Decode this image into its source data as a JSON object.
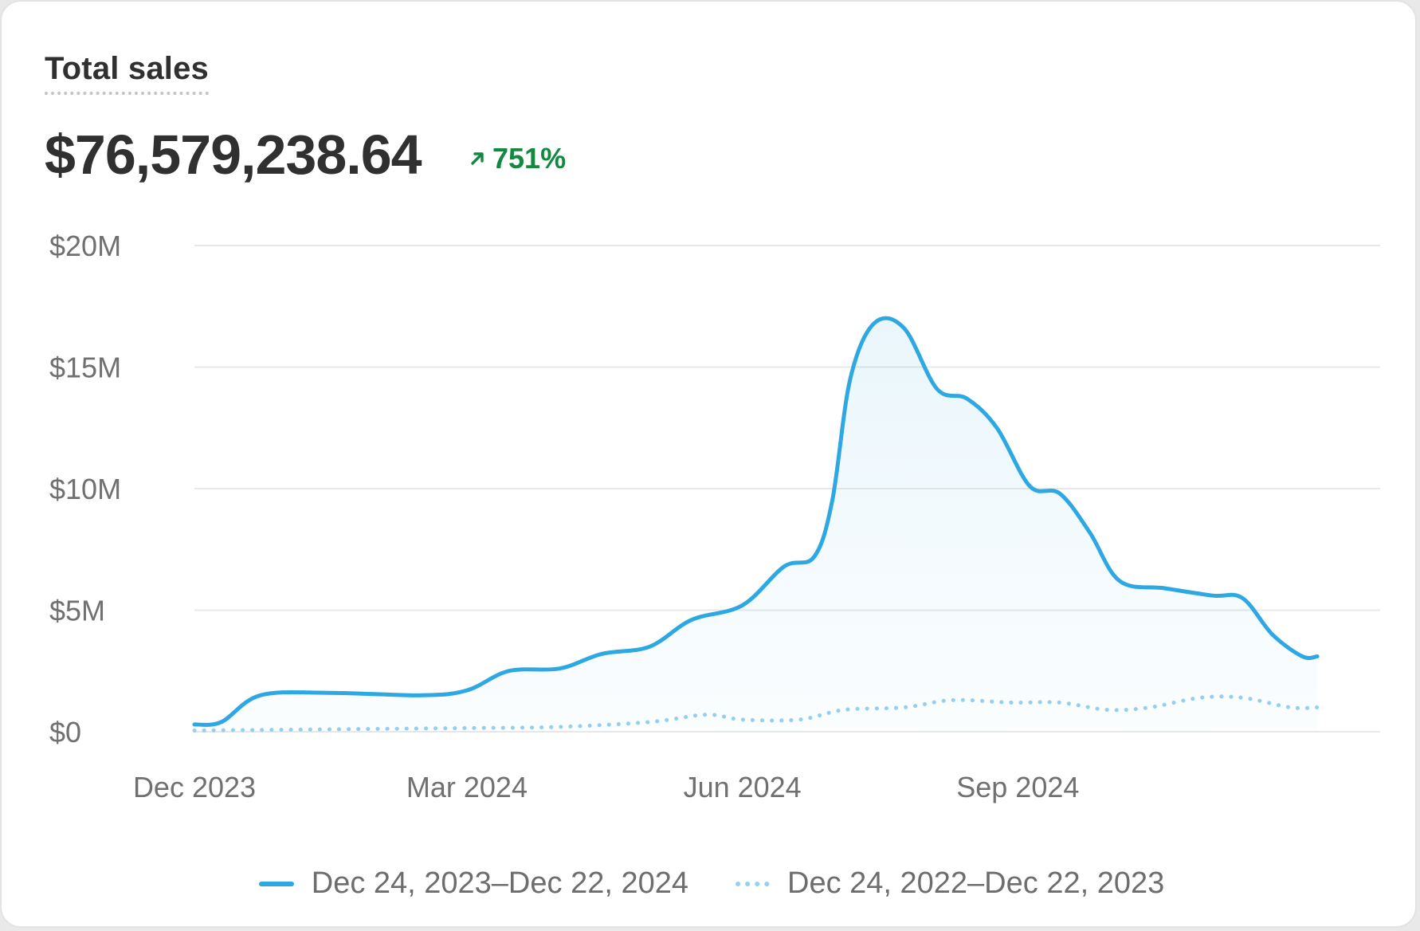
{
  "card": {
    "title": "Total sales",
    "total_value": "$76,579,238.64",
    "change": {
      "value": "751%",
      "direction": "up",
      "icon": "arrow-up-right-icon"
    }
  },
  "colors": {
    "current": "#2ea8e2",
    "previous": "#96d0ee",
    "positive": "#118a3f",
    "grid": "#e8e8e8",
    "axis_text": "#707070"
  },
  "chart_data": {
    "type": "area",
    "title": "",
    "xlabel": "",
    "ylabel": "",
    "ylim": [
      0,
      20000000
    ],
    "y_ticks": [
      {
        "value": 0,
        "label": "$0"
      },
      {
        "value": 5000000,
        "label": "$5M"
      },
      {
        "value": 10000000,
        "label": "$10M"
      },
      {
        "value": 15000000,
        "label": "$15M"
      },
      {
        "value": 20000000,
        "label": "$20M"
      }
    ],
    "x_range": [
      "2023-12-01",
      "2024-12-31"
    ],
    "x_ticks": [
      {
        "value": "2023-12-01",
        "label": "Dec 2023"
      },
      {
        "value": "2024-03-01",
        "label": "Mar 2024"
      },
      {
        "value": "2024-06-01",
        "label": "Jun 2024"
      },
      {
        "value": "2024-09-01",
        "label": "Sep 2024"
      }
    ],
    "grid": true,
    "legend": "bottom",
    "series": [
      {
        "name": "Dec 24, 2023–Dec 22, 2024",
        "style": "solid-area",
        "points": [
          [
            "2023-12-01",
            300000
          ],
          [
            "2023-12-10",
            400000
          ],
          [
            "2023-12-23",
            1500000
          ],
          [
            "2024-01-15",
            1600000
          ],
          [
            "2024-02-15",
            1500000
          ],
          [
            "2024-03-01",
            1700000
          ],
          [
            "2024-03-15",
            2500000
          ],
          [
            "2024-04-01",
            2600000
          ],
          [
            "2024-04-15",
            3200000
          ],
          [
            "2024-05-01",
            3500000
          ],
          [
            "2024-05-15",
            4600000
          ],
          [
            "2024-06-01",
            5200000
          ],
          [
            "2024-06-15",
            6800000
          ],
          [
            "2024-06-25",
            7200000
          ],
          [
            "2024-07-01",
            9500000
          ],
          [
            "2024-07-07",
            14500000
          ],
          [
            "2024-07-15",
            16800000
          ],
          [
            "2024-07-25",
            16600000
          ],
          [
            "2024-08-05",
            14100000
          ],
          [
            "2024-08-15",
            13700000
          ],
          [
            "2024-08-25",
            12500000
          ],
          [
            "2024-09-05",
            10100000
          ],
          [
            "2024-09-15",
            9800000
          ],
          [
            "2024-09-25",
            8200000
          ],
          [
            "2024-10-05",
            6200000
          ],
          [
            "2024-10-20",
            5900000
          ],
          [
            "2024-11-05",
            5600000
          ],
          [
            "2024-11-15",
            5500000
          ],
          [
            "2024-11-25",
            4000000
          ],
          [
            "2024-12-05",
            3100000
          ],
          [
            "2024-12-10",
            3100000
          ]
        ]
      },
      {
        "name": "Dec 24, 2022–Dec 22, 2023",
        "style": "dotted",
        "points": [
          [
            "2023-12-01",
            50000
          ],
          [
            "2024-01-15",
            100000
          ],
          [
            "2024-03-01",
            150000
          ],
          [
            "2024-04-01",
            200000
          ],
          [
            "2024-05-01",
            400000
          ],
          [
            "2024-05-20",
            700000
          ],
          [
            "2024-06-01",
            500000
          ],
          [
            "2024-06-20",
            500000
          ],
          [
            "2024-07-05",
            900000
          ],
          [
            "2024-07-25",
            1000000
          ],
          [
            "2024-08-10",
            1300000
          ],
          [
            "2024-08-30",
            1200000
          ],
          [
            "2024-09-15",
            1200000
          ],
          [
            "2024-10-01",
            900000
          ],
          [
            "2024-10-15",
            1000000
          ],
          [
            "2024-11-01",
            1400000
          ],
          [
            "2024-11-15",
            1400000
          ],
          [
            "2024-12-01",
            1000000
          ],
          [
            "2024-12-10",
            1000000
          ]
        ]
      }
    ]
  }
}
